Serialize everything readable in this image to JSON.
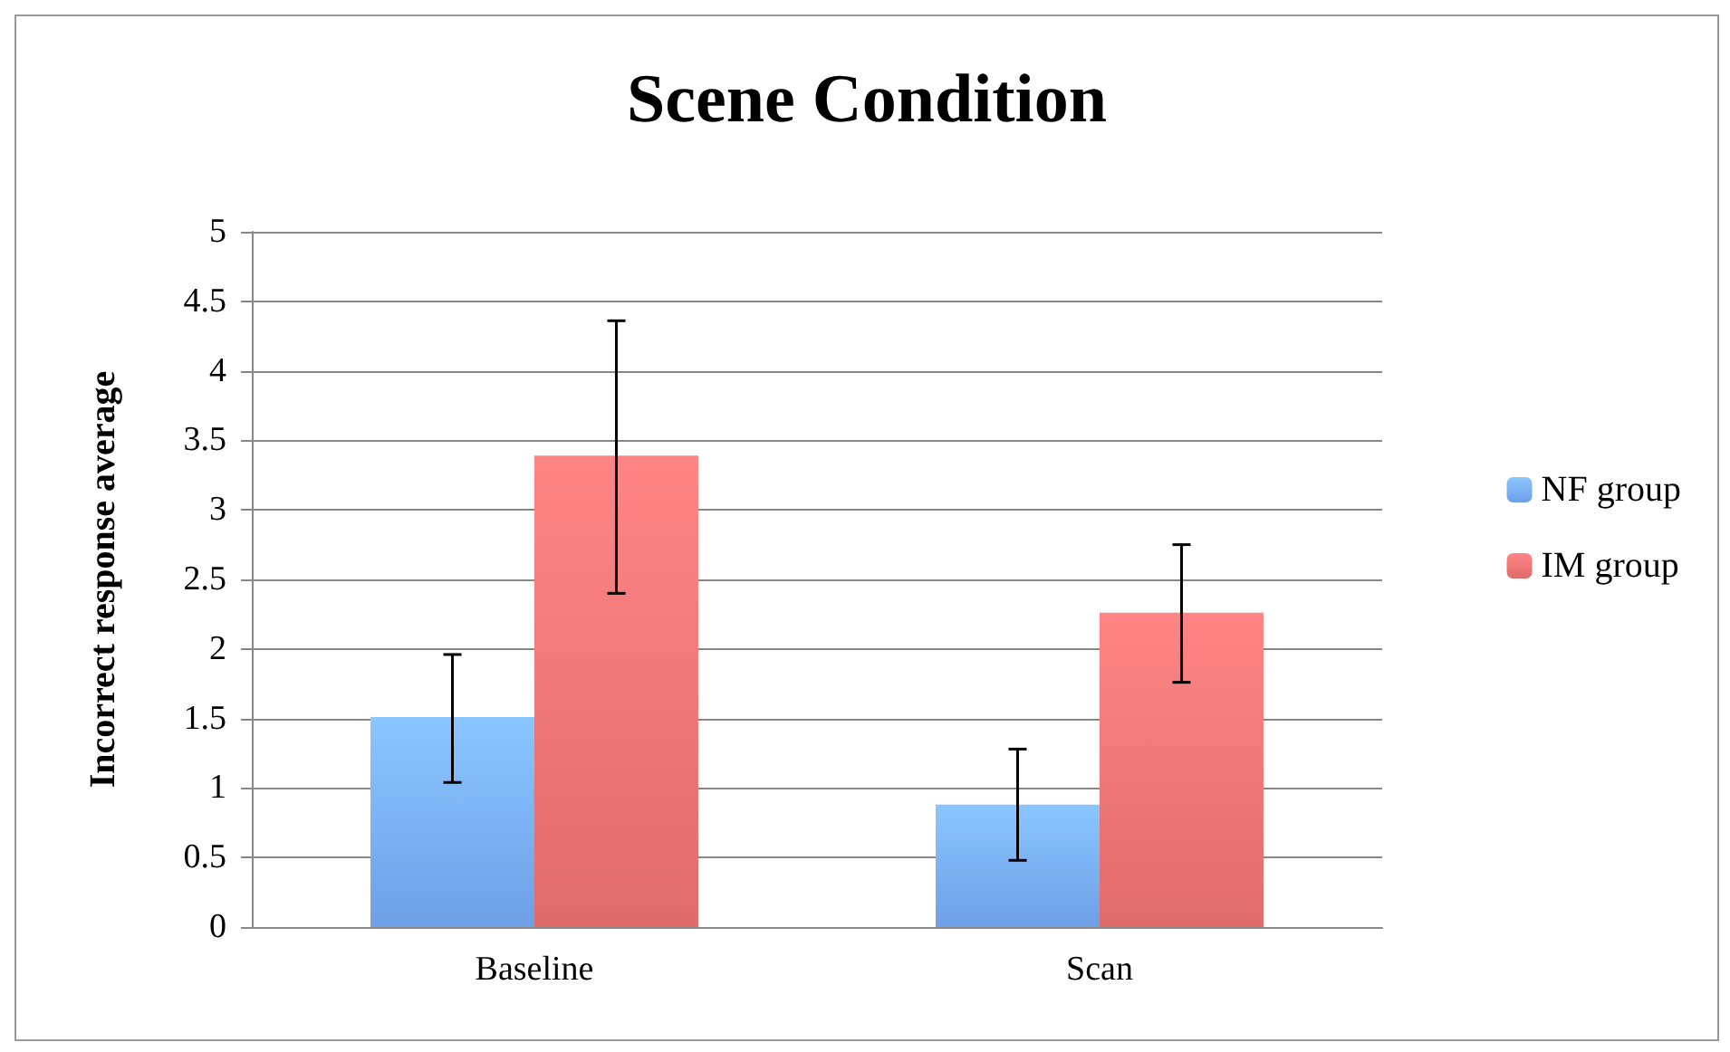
{
  "chart_data": {
    "type": "bar",
    "title": "Scene Condition",
    "ylabel": "Incorrect response average",
    "categories": [
      "Baseline",
      "Scan"
    ],
    "series": [
      {
        "name": "NF group",
        "color": "#6f9fe6",
        "values": [
          1.51,
          0.88
        ],
        "errors": [
          [
            1.04,
            1.96
          ],
          [
            0.48,
            1.28
          ]
        ]
      },
      {
        "name": "IM group",
        "color": "#e06b6b",
        "values": [
          3.39,
          2.26
        ],
        "errors": [
          [
            2.4,
            4.36
          ],
          [
            1.76,
            2.75
          ]
        ]
      }
    ],
    "ylim": [
      0,
      5
    ],
    "yticks": [
      0,
      0.5,
      1,
      1.5,
      2,
      2.5,
      3,
      3.5,
      4,
      4.5,
      5
    ],
    "grid": "y",
    "legend": "right"
  }
}
